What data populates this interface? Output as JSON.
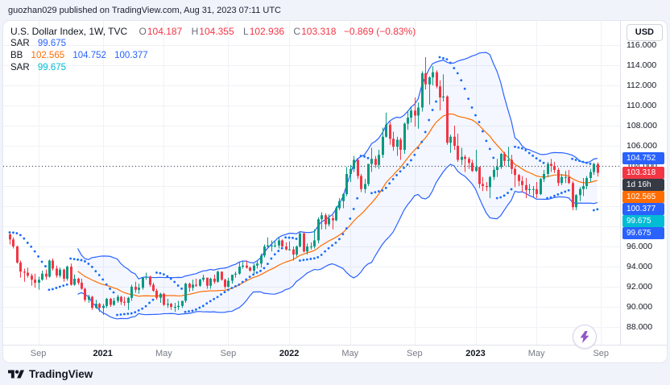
{
  "attribution": "guozhan029 published on TradingView.com, Aug 31, 2023 07:11 UTC",
  "legend": {
    "title": "U.S. Dollar Index, 1W, TVC",
    "ohlc": {
      "o_label": "O",
      "o_value": "104.187",
      "h_label": "H",
      "h_value": "104.355",
      "l_label": "L",
      "l_value": "102.936",
      "c_label": "C",
      "c_value": "103.318",
      "change": "−0.869 (−0.83%)"
    },
    "sar1": {
      "name": "SAR",
      "value": "99.675"
    },
    "bb": {
      "name": "BB",
      "basis": "102.565",
      "upper": "104.752",
      "lower": "100.377"
    },
    "sar2": {
      "name": "SAR",
      "value": "99.675"
    }
  },
  "price_scale": {
    "currency": "USD",
    "tick_labels": [
      "116.000",
      "114.000",
      "112.000",
      "110.000",
      "108.000",
      "106.000",
      "104.000",
      "102.000",
      "100.000",
      "98.000",
      "96.000",
      "94.000",
      "92.000",
      "90.000",
      "88.000"
    ],
    "tags": [
      {
        "label": "104.752",
        "price": 104.752,
        "bg": "#2962ff"
      },
      {
        "label": "103.318",
        "price": 103.318,
        "bg": "#f23645",
        "countdown": "1d 16h",
        "countdown_bg": "#363a45"
      },
      {
        "label": "102.565",
        "price": 102.565,
        "bg": "#ff6d00"
      },
      {
        "label": "100.377",
        "price": 100.377,
        "bg": "#2962ff"
      },
      {
        "label": "99.675",
        "price": 99.675,
        "bg": "#00bcd4"
      },
      {
        "label": "99.675",
        "price": 99.675,
        "bg": "#2962ff"
      }
    ]
  },
  "footer": {
    "brand": "TradingView"
  },
  "colors": {
    "up": "#089981",
    "down": "#f23645",
    "bb_basis": "#ff6d00",
    "bb_band": "#2962ff",
    "bb_fill": "rgba(41,98,255,0.05)",
    "sar_primary": "#2962ff",
    "sar_secondary": "#00bcd4",
    "last_price": "#f23645",
    "grid": "#f0f2f6",
    "dotted_line": "#555962"
  },
  "chart_data": {
    "type": "candlestick",
    "title": "U.S. Dollar Index",
    "timeframe": "1W",
    "exchange": "TVC",
    "ylim": [
      86.2,
      118.4
    ],
    "y_ticks": [
      88,
      90,
      92,
      94,
      96,
      98,
      100,
      102,
      104,
      106,
      108,
      110,
      112,
      114,
      116
    ],
    "horizontal_line": 104.0,
    "x_ticks": [
      {
        "text": "Sep",
        "idx": 8,
        "year": false
      },
      {
        "text": "2021",
        "idx": 26,
        "year": true
      },
      {
        "text": "May",
        "idx": 43,
        "year": false
      },
      {
        "text": "Sep",
        "idx": 61,
        "year": false
      },
      {
        "text": "2022",
        "idx": 78,
        "year": true
      },
      {
        "text": "May",
        "idx": 95,
        "year": false
      },
      {
        "text": "Sep",
        "idx": 113,
        "year": false
      },
      {
        "text": "2023",
        "idx": 130,
        "year": true
      },
      {
        "text": "May",
        "idx": 147,
        "year": false
      },
      {
        "text": "Sep",
        "idx": 165,
        "year": false
      }
    ],
    "overlays": [
      {
        "type": "BB",
        "period": 20,
        "mult": 2,
        "basis": 102.565,
        "upper": 104.752,
        "lower": 100.377
      },
      {
        "type": "SAR",
        "value": 99.675,
        "color": "#00bcd4"
      },
      {
        "type": "SAR",
        "value": 99.675,
        "color": "#2962ff"
      }
    ],
    "last_candle": {
      "open": 104.187,
      "high": 104.355,
      "low": 102.936,
      "close": 103.318,
      "change": -0.869,
      "change_pct": -0.83
    },
    "candles": [
      [
        97.2,
        97.4,
        96.2,
        96.7
      ],
      [
        96.7,
        96.9,
        95.8,
        96.0
      ],
      [
        96.0,
        96.1,
        94.3,
        94.4
      ],
      [
        94.4,
        94.6,
        92.9,
        93.5
      ],
      [
        93.5,
        93.8,
        92.5,
        93.4
      ],
      [
        93.4,
        93.9,
        92.9,
        93.1
      ],
      [
        93.1,
        93.3,
        92.1,
        92.7
      ],
      [
        92.7,
        93.3,
        91.9,
        92.4
      ],
      [
        92.4,
        93.0,
        91.7,
        92.7
      ],
      [
        92.7,
        93.6,
        92.6,
        93.3
      ],
      [
        93.3,
        93.7,
        92.7,
        93.0
      ],
      [
        93.0,
        94.7,
        92.9,
        94.6
      ],
      [
        94.6,
        94.8,
        93.6,
        93.8
      ],
      [
        93.8,
        94.1,
        92.9,
        93.1
      ],
      [
        93.1,
        93.9,
        92.9,
        93.7
      ],
      [
        93.7,
        93.8,
        92.5,
        92.8
      ],
      [
        92.8,
        94.1,
        92.6,
        94.0
      ],
      [
        94.0,
        94.3,
        92.1,
        92.2
      ],
      [
        92.2,
        93.2,
        92.1,
        92.8
      ],
      [
        92.8,
        92.9,
        92.2,
        92.4
      ],
      [
        92.4,
        92.8,
        91.7,
        91.8
      ],
      [
        91.8,
        91.9,
        90.5,
        90.7
      ],
      [
        90.7,
        91.2,
        90.4,
        91.0
      ],
      [
        91.0,
        91.1,
        89.7,
        89.9
      ],
      [
        89.9,
        90.7,
        89.8,
        90.3
      ],
      [
        90.3,
        90.4,
        89.5,
        89.9
      ],
      [
        89.9,
        90.3,
        89.2,
        90.1
      ],
      [
        90.1,
        90.9,
        89.9,
        90.8
      ],
      [
        90.8,
        90.9,
        90.0,
        90.2
      ],
      [
        90.2,
        90.9,
        90.1,
        90.6
      ],
      [
        90.6,
        91.2,
        90.4,
        91.0
      ],
      [
        91.0,
        91.1,
        90.2,
        90.5
      ],
      [
        90.5,
        91.0,
        90.1,
        90.4
      ],
      [
        90.4,
        91.0,
        89.7,
        90.9
      ],
      [
        90.9,
        92.2,
        90.6,
        92.0
      ],
      [
        92.0,
        92.5,
        91.4,
        91.7
      ],
      [
        91.7,
        92.3,
        91.3,
        91.9
      ],
      [
        91.9,
        92.9,
        91.7,
        92.9
      ],
      [
        92.9,
        93.4,
        92.7,
        93.0
      ],
      [
        93.0,
        93.1,
        92.0,
        92.2
      ],
      [
        92.2,
        92.4,
        91.5,
        91.6
      ],
      [
        91.6,
        91.8,
        90.7,
        90.9
      ],
      [
        90.9,
        91.4,
        90.4,
        91.3
      ],
      [
        91.3,
        91.4,
        90.1,
        90.2
      ],
      [
        90.2,
        90.8,
        89.9,
        90.3
      ],
      [
        90.3,
        90.4,
        89.7,
        90.0
      ],
      [
        90.0,
        90.4,
        89.5,
        90.0
      ],
      [
        90.0,
        90.6,
        89.7,
        90.1
      ],
      [
        90.1,
        90.6,
        89.9,
        90.6
      ],
      [
        90.6,
        92.4,
        90.4,
        92.3
      ],
      [
        92.3,
        92.4,
        91.5,
        91.9
      ],
      [
        91.9,
        92.7,
        91.6,
        92.2
      ],
      [
        92.2,
        92.8,
        92.0,
        92.1
      ],
      [
        92.1,
        92.8,
        92.0,
        92.7
      ],
      [
        92.7,
        93.2,
        92.5,
        92.9
      ],
      [
        92.9,
        92.9,
        91.8,
        92.1
      ],
      [
        92.1,
        92.9,
        91.8,
        92.8
      ],
      [
        92.8,
        93.2,
        92.3,
        92.5
      ],
      [
        92.5,
        93.6,
        92.4,
        93.5
      ],
      [
        93.5,
        93.5,
        92.6,
        92.7
      ],
      [
        92.7,
        92.8,
        91.8,
        92.0
      ],
      [
        92.0,
        92.9,
        91.9,
        92.6
      ],
      [
        92.6,
        93.2,
        92.3,
        93.2
      ],
      [
        93.2,
        93.5,
        92.9,
        93.3
      ],
      [
        93.3,
        94.5,
        93.2,
        94.0
      ],
      [
        94.0,
        94.5,
        93.8,
        94.1
      ],
      [
        94.1,
        94.6,
        93.8,
        93.9
      ],
      [
        93.9,
        94.0,
        93.5,
        93.6
      ],
      [
        93.6,
        94.3,
        93.3,
        94.1
      ],
      [
        94.1,
        94.6,
        93.8,
        94.3
      ],
      [
        94.3,
        95.3,
        93.9,
        95.1
      ],
      [
        95.1,
        96.2,
        94.9,
        96.0
      ],
      [
        96.0,
        96.9,
        95.8,
        96.1
      ],
      [
        96.1,
        96.6,
        95.5,
        96.1
      ],
      [
        96.1,
        96.5,
        95.9,
        96.1
      ],
      [
        96.1,
        96.9,
        95.8,
        96.6
      ],
      [
        96.6,
        96.7,
        95.9,
        96.0
      ],
      [
        96.0,
        96.4,
        95.6,
        95.7
      ],
      [
        95.7,
        96.5,
        95.6,
        95.7
      ],
      [
        95.7,
        96.0,
        94.6,
        95.2
      ],
      [
        95.2,
        96.1,
        95.0,
        96.0
      ],
      [
        96.0,
        97.4,
        95.9,
        97.3
      ],
      [
        97.3,
        97.4,
        95.4,
        95.5
      ],
      [
        95.5,
        96.3,
        95.2,
        96.0
      ],
      [
        96.0,
        96.4,
        95.7,
        96.0
      ],
      [
        96.0,
        97.7,
        95.8,
        96.6
      ],
      [
        96.6,
        98.9,
        96.3,
        98.7
      ],
      [
        98.7,
        99.4,
        97.7,
        99.1
      ],
      [
        99.1,
        99.3,
        97.7,
        98.2
      ],
      [
        98.2,
        99.2,
        98.0,
        98.8
      ],
      [
        98.8,
        99.1,
        97.7,
        98.6
      ],
      [
        98.6,
        100.0,
        98.5,
        99.8
      ],
      [
        99.8,
        100.8,
        99.6,
        100.5
      ],
      [
        100.5,
        101.3,
        99.8,
        101.2
      ],
      [
        101.2,
        103.9,
        101.0,
        103.2
      ],
      [
        103.2,
        104.1,
        102.4,
        103.7
      ],
      [
        103.7,
        105.0,
        103.4,
        104.6
      ],
      [
        104.6,
        104.7,
        102.7,
        103.0
      ],
      [
        103.0,
        103.2,
        101.4,
        101.7
      ],
      [
        101.7,
        102.7,
        101.3,
        102.2
      ],
      [
        102.2,
        104.2,
        102.0,
        104.2
      ],
      [
        104.2,
        105.8,
        103.4,
        104.7
      ],
      [
        104.7,
        105.0,
        103.8,
        104.1
      ],
      [
        104.1,
        105.6,
        103.7,
        105.1
      ],
      [
        105.1,
        107.8,
        104.8,
        106.9
      ],
      [
        106.9,
        109.3,
        106.8,
        108.1
      ],
      [
        108.1,
        108.4,
        106.1,
        106.7
      ],
      [
        106.7,
        107.4,
        105.5,
        105.9
      ],
      [
        105.9,
        106.9,
        105.0,
        106.6
      ],
      [
        106.6,
        106.8,
        104.6,
        105.6
      ],
      [
        105.6,
        108.3,
        105.2,
        108.2
      ],
      [
        108.2,
        109.5,
        107.6,
        108.8
      ],
      [
        108.8,
        109.9,
        108.3,
        109.5
      ],
      [
        109.5,
        110.8,
        107.9,
        109.0
      ],
      [
        109.0,
        110.3,
        107.7,
        109.8
      ],
      [
        109.8,
        113.4,
        109.4,
        113.2
      ],
      [
        113.2,
        114.8,
        111.6,
        112.1
      ],
      [
        112.1,
        112.9,
        110.1,
        112.8
      ],
      [
        112.8,
        113.9,
        112.0,
        113.3
      ],
      [
        113.3,
        113.5,
        111.7,
        111.9
      ],
      [
        111.9,
        112.5,
        109.5,
        110.8
      ],
      [
        110.8,
        113.1,
        110.4,
        110.9
      ],
      [
        110.9,
        111.0,
        106.1,
        106.3
      ],
      [
        106.3,
        107.1,
        105.3,
        106.9
      ],
      [
        106.9,
        108.0,
        105.6,
        106.0
      ],
      [
        106.0,
        107.2,
        104.4,
        104.6
      ],
      [
        104.6,
        105.8,
        104.1,
        104.9
      ],
      [
        104.9,
        105.1,
        103.4,
        104.7
      ],
      [
        104.7,
        104.9,
        103.7,
        104.3
      ],
      [
        104.3,
        104.6,
        103.4,
        103.5
      ],
      [
        103.5,
        105.6,
        103.4,
        103.9
      ],
      [
        103.9,
        103.9,
        101.8,
        102.2
      ],
      [
        102.2,
        102.9,
        101.5,
        102.0
      ],
      [
        102.0,
        102.4,
        101.5,
        101.9
      ],
      [
        101.9,
        103.0,
        100.8,
        102.9
      ],
      [
        102.9,
        103.9,
        102.6,
        103.6
      ],
      [
        103.6,
        104.7,
        102.9,
        103.9
      ],
      [
        103.9,
        105.3,
        103.7,
        105.2
      ],
      [
        105.2,
        105.4,
        104.0,
        104.5
      ],
      [
        104.5,
        105.9,
        103.9,
        104.6
      ],
      [
        104.6,
        105.1,
        103.2,
        103.7
      ],
      [
        103.7,
        103.9,
        101.9,
        103.1
      ],
      [
        103.1,
        103.2,
        102.0,
        102.5
      ],
      [
        102.5,
        103.0,
        101.4,
        102.1
      ],
      [
        102.1,
        102.8,
        100.8,
        101.6
      ],
      [
        101.6,
        102.2,
        101.2,
        101.7
      ],
      [
        101.7,
        102.0,
        100.9,
        101.7
      ],
      [
        101.7,
        102.4,
        100.8,
        101.2
      ],
      [
        101.2,
        102.8,
        101.1,
        102.7
      ],
      [
        102.7,
        103.6,
        102.4,
        103.2
      ],
      [
        103.2,
        104.4,
        102.9,
        104.2
      ],
      [
        104.2,
        104.7,
        103.4,
        104.0
      ],
      [
        104.0,
        104.4,
        103.3,
        103.6
      ],
      [
        103.6,
        103.8,
        102.0,
        102.3
      ],
      [
        102.3,
        103.2,
        102.1,
        102.9
      ],
      [
        102.9,
        103.5,
        102.3,
        102.9
      ],
      [
        102.9,
        103.6,
        102.2,
        102.3
      ],
      [
        102.3,
        102.5,
        99.6,
        99.9
      ],
      [
        99.9,
        101.2,
        99.6,
        101.1
      ],
      [
        101.1,
        101.9,
        100.5,
        101.7
      ],
      [
        101.7,
        102.8,
        101.0,
        102.0
      ],
      [
        102.0,
        103.0,
        101.7,
        102.8
      ],
      [
        102.8,
        103.7,
        102.4,
        103.4
      ],
      [
        103.4,
        104.3,
        103.1,
        104.2
      ],
      [
        104.187,
        104.355,
        102.936,
        103.318
      ]
    ]
  }
}
